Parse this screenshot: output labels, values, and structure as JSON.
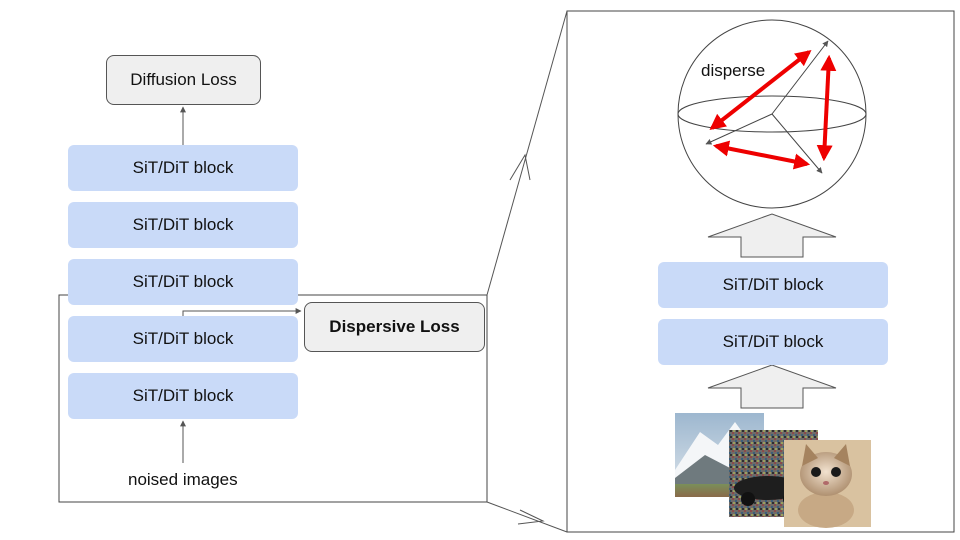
{
  "left_stack": {
    "top_loss": "Diffusion Loss",
    "blocks": [
      "SiT/DiT block",
      "SiT/DiT block",
      "SiT/DiT block",
      "SiT/DiT block",
      "SiT/DiT block"
    ],
    "input_label": "noised images",
    "side_loss": "Dispersive Loss"
  },
  "zoom_panel": {
    "sphere_label": "disperse",
    "blocks": [
      "SiT/DiT block",
      "SiT/DiT block"
    ]
  },
  "colors": {
    "block_fill": "#c9daf8",
    "loss_fill": "#efefef",
    "disperse_arrow": "#ee0000"
  }
}
